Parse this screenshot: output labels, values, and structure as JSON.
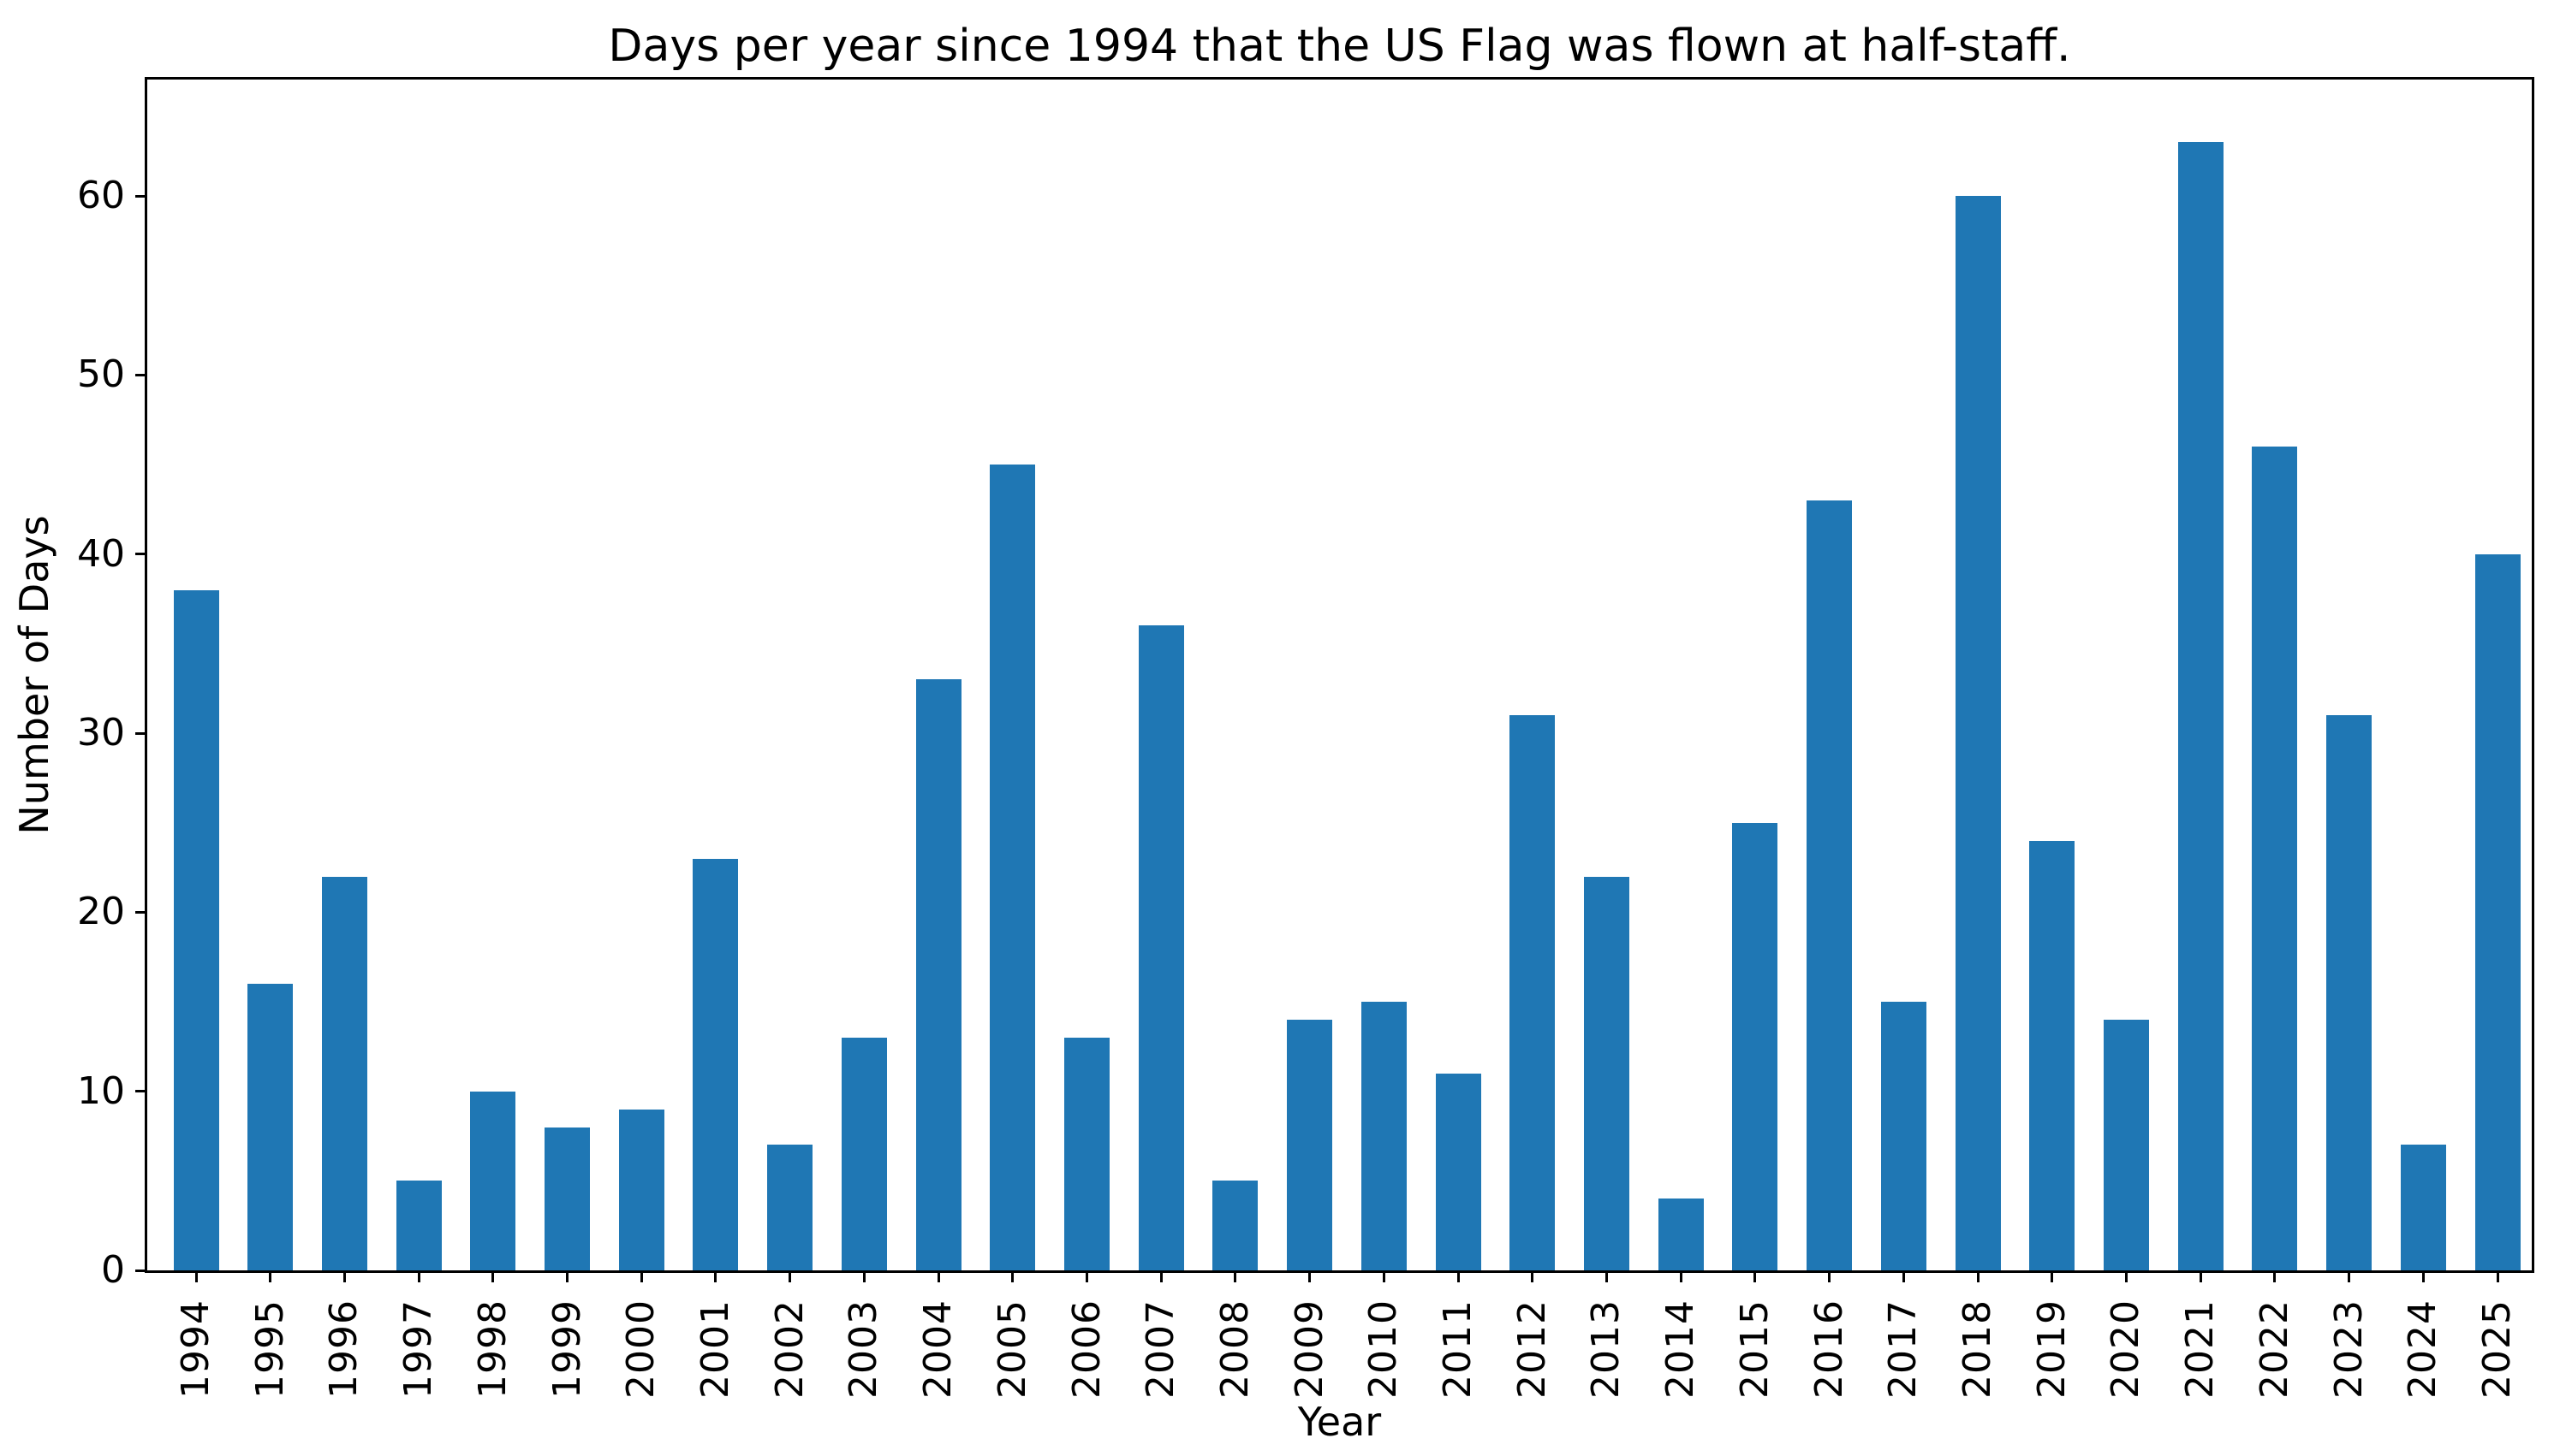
{
  "figure": {
    "title": "Days per year since 1994 that the US Flag was flown at half-staff."
  },
  "chart_data": {
    "type": "bar",
    "title": "Days per year since 1994 that the US Flag was flown at half-staff.",
    "xlabel": "Year",
    "ylabel": "Number of Days",
    "categories": [
      "1994",
      "1995",
      "1996",
      "1997",
      "1998",
      "1999",
      "2000",
      "2001",
      "2002",
      "2003",
      "2004",
      "2005",
      "2006",
      "2007",
      "2008",
      "2009",
      "2010",
      "2011",
      "2012",
      "2013",
      "2014",
      "2015",
      "2016",
      "2017",
      "2018",
      "2019",
      "2020",
      "2021",
      "2022",
      "2023",
      "2024",
      "2025"
    ],
    "values": [
      38,
      16,
      22,
      5,
      10,
      8,
      9,
      23,
      7,
      13,
      33,
      45,
      13,
      36,
      5,
      14,
      15,
      11,
      31,
      22,
      4,
      25,
      43,
      15,
      60,
      24,
      14,
      63,
      46,
      31,
      7,
      40
    ],
    "yticks": [
      0,
      10,
      20,
      30,
      40,
      50,
      60
    ],
    "ylim": [
      0,
      66.5
    ],
    "grid": false,
    "legend": null,
    "bar_color": "#1f77b4",
    "axis_color": "#000000",
    "background_color": "#ffffff"
  }
}
